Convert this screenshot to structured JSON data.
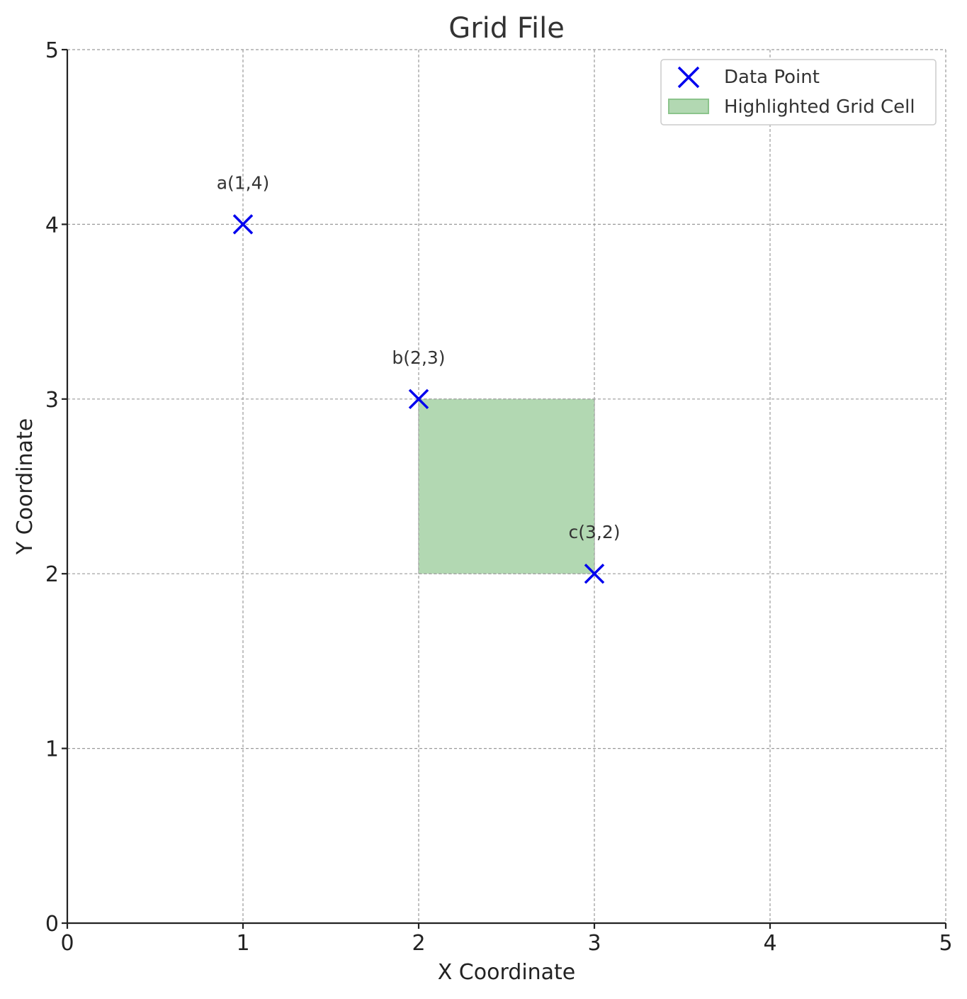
{
  "chart_data": {
    "type": "scatter",
    "title": "Grid File",
    "xlabel": "X Coordinate",
    "ylabel": "Y Coordinate",
    "xlim": [
      0,
      5
    ],
    "ylim": [
      0,
      5
    ],
    "xticks": [
      "0",
      "1",
      "2",
      "3",
      "4",
      "5"
    ],
    "yticks": [
      "0",
      "1",
      "2",
      "3",
      "4",
      "5"
    ],
    "grid": true,
    "legend_position": "top-right",
    "series": [
      {
        "name": "Data Point",
        "marker": "x",
        "color": "#0000ee",
        "points": [
          {
            "label": "a(1,4)",
            "x": 1,
            "y": 4
          },
          {
            "label": "b(2,3)",
            "x": 2,
            "y": 3
          },
          {
            "label": "c(3,2)",
            "x": 3,
            "y": 2
          }
        ]
      }
    ],
    "highlighted_cell": {
      "name": "Highlighted Grid Cell",
      "x_range": [
        2,
        3
      ],
      "y_range": [
        2,
        3
      ],
      "color": "#b2d8b2",
      "edge_color": "#8cc48c"
    }
  }
}
